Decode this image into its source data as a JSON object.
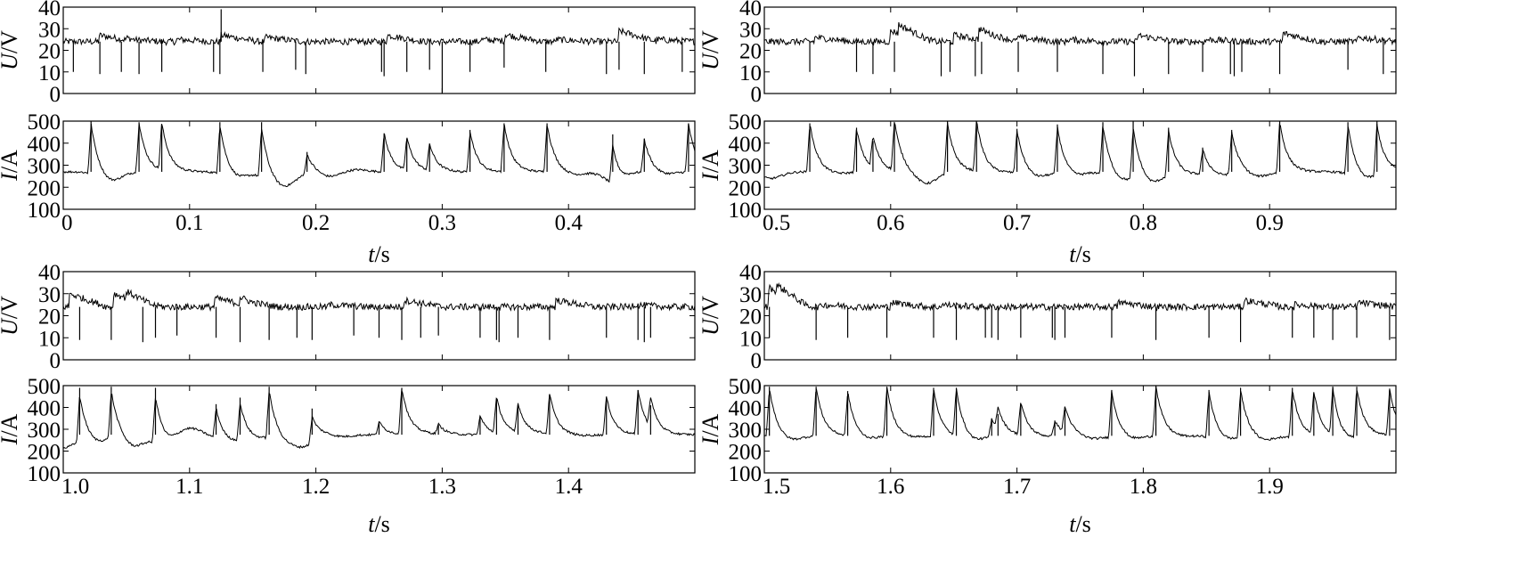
{
  "chart_data": [
    {
      "type": "line",
      "panel": "top-left",
      "x_range": [
        0,
        0.5
      ],
      "x_ticks": [
        0,
        0.1,
        0.2,
        0.3,
        0.4
      ],
      "x_tick_labels": [
        "0",
        "0.1",
        "0.2",
        "0.3",
        "0.4"
      ],
      "xlabel_var": "t",
      "xlabel_unit": "/s",
      "voltage": {
        "ylabel_var": "U",
        "ylabel_unit": "/V",
        "ylim": [
          0,
          40
        ],
        "y_ticks": [
          0,
          10,
          20,
          30,
          40
        ],
        "baseline": 24,
        "dips": [
          [
            0.008,
            10
          ],
          [
            0.029,
            9
          ],
          [
            0.046,
            10
          ],
          [
            0.06,
            9
          ],
          [
            0.078,
            10
          ],
          [
            0.119,
            10
          ],
          [
            0.124,
            9
          ],
          [
            0.125,
            39
          ],
          [
            0.158,
            10
          ],
          [
            0.184,
            11
          ],
          [
            0.192,
            9
          ],
          [
            0.252,
            10
          ],
          [
            0.254,
            8
          ],
          [
            0.272,
            10
          ],
          [
            0.29,
            11
          ],
          [
            0.3,
            0
          ],
          [
            0.322,
            10
          ],
          [
            0.349,
            12
          ],
          [
            0.382,
            10
          ],
          [
            0.43,
            9
          ],
          [
            0.44,
            11
          ],
          [
            0.46,
            9
          ],
          [
            0.49,
            10
          ]
        ],
        "steps": [
          [
            0.028,
            27
          ],
          [
            0.05,
            25
          ],
          [
            0.09,
            25
          ],
          [
            0.125,
            27
          ],
          [
            0.16,
            26
          ],
          [
            0.2,
            24
          ],
          [
            0.256,
            27
          ],
          [
            0.33,
            25
          ],
          [
            0.35,
            27
          ],
          [
            0.39,
            25
          ],
          [
            0.44,
            29
          ],
          [
            0.47,
            25
          ]
        ]
      },
      "current": {
        "ylabel_var": "I",
        "ylabel_unit": "/A",
        "ylim": [
          100,
          500
        ],
        "y_ticks": [
          100,
          200,
          300,
          400,
          500
        ],
        "baseline": 270,
        "peaks": [
          [
            0.022,
            500
          ],
          [
            0.06,
            495
          ],
          [
            0.078,
            485
          ],
          [
            0.124,
            495
          ],
          [
            0.157,
            495
          ],
          [
            0.193,
            360
          ],
          [
            0.254,
            445
          ],
          [
            0.272,
            420
          ],
          [
            0.29,
            390
          ],
          [
            0.322,
            460
          ],
          [
            0.349,
            490
          ],
          [
            0.383,
            490
          ],
          [
            0.435,
            440
          ],
          [
            0.46,
            420
          ],
          [
            0.495,
            490
          ]
        ],
        "troughs": [
          [
            0.037,
            220
          ],
          [
            0.095,
            270
          ],
          [
            0.137,
            235
          ],
          [
            0.165,
            240
          ],
          [
            0.176,
            210
          ],
          [
            0.21,
            245
          ],
          [
            0.232,
            280
          ],
          [
            0.33,
            265
          ],
          [
            0.365,
            270
          ],
          [
            0.405,
            255
          ],
          [
            0.438,
            215
          ],
          [
            0.475,
            255
          ]
        ]
      }
    },
    {
      "type": "line",
      "panel": "top-right",
      "x_range": [
        0.5,
        1.0
      ],
      "x_ticks": [
        0.5,
        0.6,
        0.7,
        0.8,
        0.9
      ],
      "x_tick_labels": [
        "0.5",
        "0.6",
        "0.7",
        "0.8",
        "0.9"
      ],
      "xlabel_var": "t",
      "xlabel_unit": "/s",
      "voltage": {
        "ylabel_var": "U",
        "ylabel_unit": "/V",
        "ylim": [
          0,
          40
        ],
        "y_ticks": [
          0,
          10,
          20,
          30,
          40
        ],
        "baseline": 24,
        "dips": [
          [
            0.536,
            10
          ],
          [
            0.573,
            10
          ],
          [
            0.586,
            9
          ],
          [
            0.603,
            10
          ],
          [
            0.64,
            8
          ],
          [
            0.647,
            10
          ],
          [
            0.667,
            8
          ],
          [
            0.672,
            9
          ],
          [
            0.701,
            10
          ],
          [
            0.732,
            10
          ],
          [
            0.768,
            9
          ],
          [
            0.793,
            8
          ],
          [
            0.82,
            9
          ],
          [
            0.847,
            10
          ],
          [
            0.869,
            9
          ],
          [
            0.872,
            8
          ],
          [
            0.878,
            10
          ],
          [
            0.908,
            9
          ],
          [
            0.962,
            11
          ],
          [
            0.99,
            9
          ]
        ],
        "steps": [
          [
            0.54,
            26
          ],
          [
            0.6,
            29
          ],
          [
            0.606,
            28
          ],
          [
            0.65,
            27
          ],
          [
            0.67,
            29
          ],
          [
            0.7,
            26
          ],
          [
            0.74,
            25
          ],
          [
            0.795,
            27
          ],
          [
            0.85,
            25
          ],
          [
            0.91,
            28
          ],
          [
            0.97,
            26
          ]
        ]
      },
      "current": {
        "ylabel_var": "I",
        "ylabel_unit": "/A",
        "ylim": [
          100,
          500
        ],
        "y_ticks": [
          100,
          200,
          300,
          400,
          500
        ],
        "baseline": 270,
        "peaks": [
          [
            0.536,
            490
          ],
          [
            0.573,
            470
          ],
          [
            0.586,
            410
          ],
          [
            0.603,
            495
          ],
          [
            0.645,
            500
          ],
          [
            0.668,
            500
          ],
          [
            0.7,
            465
          ],
          [
            0.732,
            485
          ],
          [
            0.768,
            495
          ],
          [
            0.792,
            500
          ],
          [
            0.82,
            470
          ],
          [
            0.847,
            380
          ],
          [
            0.87,
            460
          ],
          [
            0.908,
            500
          ],
          [
            0.962,
            495
          ],
          [
            0.985,
            500
          ]
        ],
        "troughs": [
          [
            0.505,
            240
          ],
          [
            0.558,
            260
          ],
          [
            0.628,
            215
          ],
          [
            0.685,
            265
          ],
          [
            0.715,
            240
          ],
          [
            0.745,
            245
          ],
          [
            0.782,
            225
          ],
          [
            0.806,
            210
          ],
          [
            0.835,
            255
          ],
          [
            0.86,
            250
          ],
          [
            0.89,
            245
          ],
          [
            0.935,
            270
          ],
          [
            0.975,
            230
          ]
        ]
      }
    },
    {
      "type": "line",
      "panel": "bottom-left",
      "x_range": [
        1.0,
        1.5
      ],
      "x_ticks": [
        1.0,
        1.1,
        1.2,
        1.3,
        1.4
      ],
      "x_tick_labels": [
        "1.0",
        "1.1",
        "1.2",
        "1.3",
        "1.4"
      ],
      "xlabel_var": "t",
      "xlabel_unit": "/s",
      "voltage": {
        "ylabel_var": "U",
        "ylabel_unit": "/V",
        "ylim": [
          0,
          40
        ],
        "y_ticks": [
          0,
          10,
          20,
          30,
          40
        ],
        "baseline": 24,
        "dips": [
          [
            1.013,
            9
          ],
          [
            1.038,
            9
          ],
          [
            1.063,
            8
          ],
          [
            1.073,
            10
          ],
          [
            1.09,
            11
          ],
          [
            1.121,
            10
          ],
          [
            1.14,
            8
          ],
          [
            1.163,
            9
          ],
          [
            1.185,
            10
          ],
          [
            1.197,
            9
          ],
          [
            1.23,
            11
          ],
          [
            1.25,
            10
          ],
          [
            1.268,
            9
          ],
          [
            1.283,
            10
          ],
          [
            1.297,
            11
          ],
          [
            1.33,
            10
          ],
          [
            1.343,
            9
          ],
          [
            1.345,
            8
          ],
          [
            1.36,
            10
          ],
          [
            1.385,
            9
          ],
          [
            1.43,
            10
          ],
          [
            1.455,
            9
          ],
          [
            1.46,
            8
          ],
          [
            1.465,
            10
          ]
        ],
        "steps": [
          [
            1.005,
            30
          ],
          [
            1.04,
            30
          ],
          [
            1.05,
            27
          ],
          [
            1.12,
            28
          ],
          [
            1.14,
            27
          ],
          [
            1.21,
            25
          ],
          [
            1.27,
            27
          ],
          [
            1.39,
            27
          ],
          [
            1.45,
            25
          ]
        ]
      },
      "current": {
        "ylabel_var": "I",
        "ylabel_unit": "/A",
        "ylim": [
          100,
          500
        ],
        "y_ticks": [
          100,
          200,
          300,
          400,
          500
        ],
        "baseline": 275,
        "peaks": [
          [
            1.013,
            490
          ],
          [
            1.038,
            495
          ],
          [
            1.073,
            490
          ],
          [
            1.121,
            415
          ],
          [
            1.14,
            445
          ],
          [
            1.163,
            495
          ],
          [
            1.197,
            395
          ],
          [
            1.25,
            335
          ],
          [
            1.268,
            490
          ],
          [
            1.297,
            320
          ],
          [
            1.33,
            360
          ],
          [
            1.343,
            440
          ],
          [
            1.36,
            410
          ],
          [
            1.385,
            460
          ],
          [
            1.43,
            450
          ],
          [
            1.455,
            480
          ],
          [
            1.465,
            410
          ]
        ],
        "troughs": [
          [
            1.0,
            215
          ],
          [
            1.025,
            230
          ],
          [
            1.055,
            215
          ],
          [
            1.08,
            230
          ],
          [
            1.1,
            305
          ],
          [
            1.13,
            240
          ],
          [
            1.15,
            250
          ],
          [
            1.175,
            240
          ],
          [
            1.19,
            225
          ],
          [
            1.22,
            265
          ],
          [
            1.285,
            280
          ],
          [
            1.315,
            275
          ],
          [
            1.375,
            280
          ],
          [
            1.41,
            270
          ],
          [
            1.48,
            275
          ]
        ]
      }
    },
    {
      "type": "line",
      "panel": "bottom-right",
      "x_range": [
        1.5,
        2.0
      ],
      "x_ticks": [
        1.5,
        1.6,
        1.7,
        1.8,
        1.9
      ],
      "x_tick_labels": [
        "1.5",
        "1.6",
        "1.7",
        "1.8",
        "1.9"
      ],
      "xlabel_var": "t",
      "xlabel_unit": "/s",
      "voltage": {
        "ylabel_var": "U",
        "ylabel_unit": "/V",
        "ylim": [
          0,
          40
        ],
        "y_ticks": [
          0,
          10,
          20,
          30,
          40
        ],
        "baseline": 24,
        "dips": [
          [
            1.504,
            10
          ],
          [
            1.541,
            9
          ],
          [
            1.566,
            10
          ],
          [
            1.597,
            10
          ],
          [
            1.634,
            10
          ],
          [
            1.652,
            9
          ],
          [
            1.675,
            10
          ],
          [
            1.68,
            10
          ],
          [
            1.685,
            9
          ],
          [
            1.703,
            10
          ],
          [
            1.728,
            10
          ],
          [
            1.73,
            9
          ],
          [
            1.738,
            10
          ],
          [
            1.775,
            10
          ],
          [
            1.81,
            9
          ],
          [
            1.852,
            10
          ],
          [
            1.877,
            8
          ],
          [
            1.918,
            10
          ],
          [
            1.935,
            10
          ],
          [
            1.95,
            9
          ],
          [
            1.969,
            10
          ],
          [
            1.995,
            9
          ]
        ],
        "steps": [
          [
            1.503,
            33
          ],
          [
            1.51,
            27
          ],
          [
            1.545,
            25
          ],
          [
            1.6,
            26
          ],
          [
            1.64,
            25
          ],
          [
            1.78,
            26
          ],
          [
            1.88,
            27
          ],
          [
            1.92,
            25
          ],
          [
            1.97,
            26
          ]
        ]
      },
      "current": {
        "ylabel_var": "I",
        "ylabel_unit": "/A",
        "ylim": [
          100,
          500
        ],
        "y_ticks": [
          100,
          200,
          300,
          400,
          500
        ],
        "baseline": 270,
        "peaks": [
          [
            1.504,
            495
          ],
          [
            1.541,
            495
          ],
          [
            1.566,
            475
          ],
          [
            1.597,
            495
          ],
          [
            1.634,
            490
          ],
          [
            1.652,
            490
          ],
          [
            1.68,
            350
          ],
          [
            1.685,
            370
          ],
          [
            1.703,
            420
          ],
          [
            1.73,
            340
          ],
          [
            1.738,
            390
          ],
          [
            1.775,
            480
          ],
          [
            1.81,
            500
          ],
          [
            1.852,
            480
          ],
          [
            1.877,
            490
          ],
          [
            1.918,
            490
          ],
          [
            1.935,
            465
          ],
          [
            1.95,
            495
          ],
          [
            1.969,
            495
          ],
          [
            1.995,
            480
          ]
        ],
        "troughs": [
          [
            1.52,
            245
          ],
          [
            1.555,
            270
          ],
          [
            1.58,
            250
          ],
          [
            1.615,
            260
          ],
          [
            1.645,
            265
          ],
          [
            1.665,
            240
          ],
          [
            1.72,
            265
          ],
          [
            1.76,
            255
          ],
          [
            1.79,
            250
          ],
          [
            1.83,
            265
          ],
          [
            1.865,
            245
          ],
          [
            1.895,
            245
          ],
          [
            1.925,
            265
          ],
          [
            1.958,
            240
          ],
          [
            1.982,
            270
          ]
        ]
      }
    }
  ]
}
